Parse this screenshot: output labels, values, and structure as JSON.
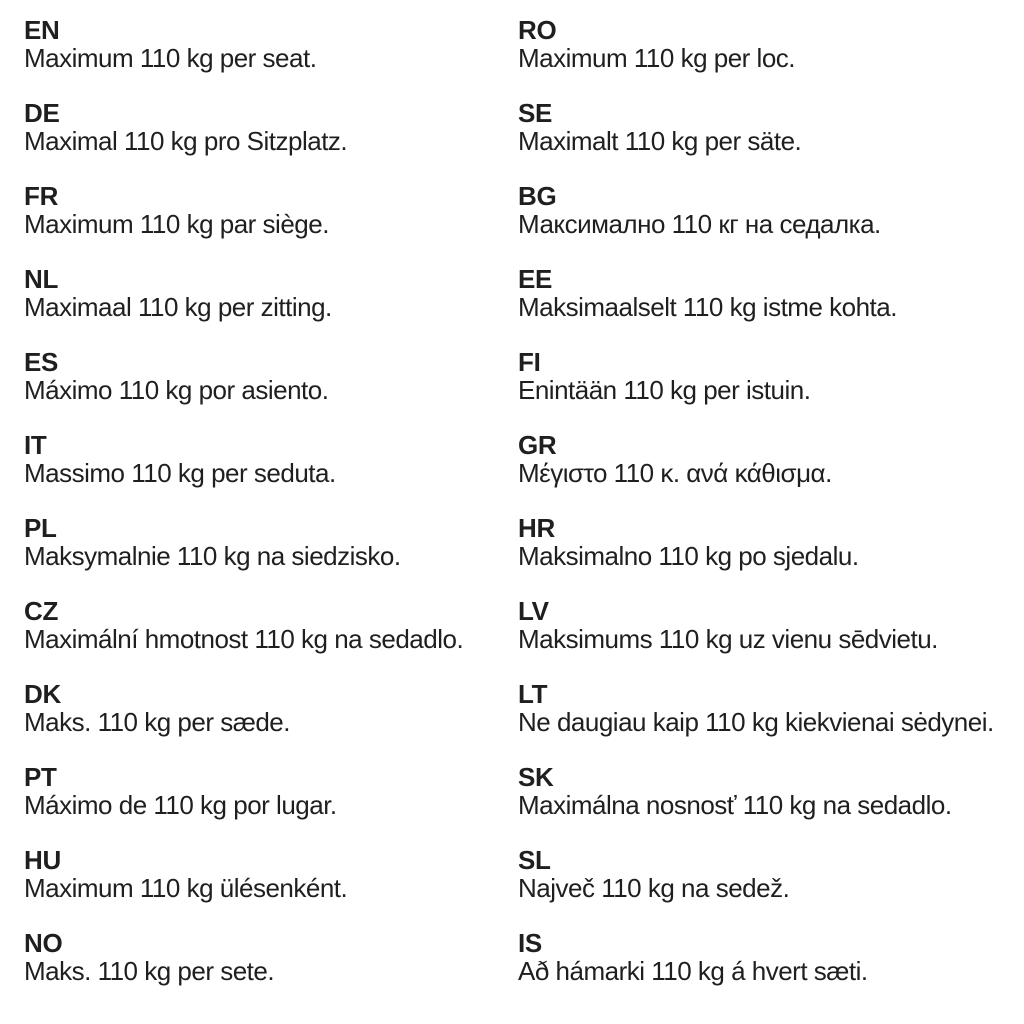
{
  "page": {
    "background_color": "#ffffff",
    "text_color": "#1f1f1f"
  },
  "columns": [
    {
      "name": "left",
      "entries": [
        {
          "code": "EN",
          "text": "Maximum 110 kg per seat."
        },
        {
          "code": "DE",
          "text": "Maximal 110 kg pro Sitzplatz."
        },
        {
          "code": "FR",
          "text": "Maximum 110 kg par siège."
        },
        {
          "code": "NL",
          "text": "Maximaal 110 kg per zitting."
        },
        {
          "code": "ES",
          "text": "Máximo 110 kg por asiento."
        },
        {
          "code": "IT",
          "text": "Massimo 110 kg per seduta."
        },
        {
          "code": "PL",
          "text": "Maksymalnie 110 kg na siedzisko."
        },
        {
          "code": "CZ",
          "text": "Maximální hmotnost 110 kg na sedadlo."
        },
        {
          "code": "DK",
          "text": "Maks. 110 kg per sæde."
        },
        {
          "code": "PT",
          "text": "Máximo de 110 kg por lugar."
        },
        {
          "code": "HU",
          "text": "Maximum 110 kg ülésenként."
        },
        {
          "code": "NO",
          "text": "Maks. 110 kg per sete."
        }
      ]
    },
    {
      "name": "right",
      "entries": [
        {
          "code": "RO",
          "text": "Maximum 110 kg per loc."
        },
        {
          "code": "SE",
          "text": "Maximalt 110 kg per säte."
        },
        {
          "code": "BG",
          "text": "Максимално 110 кг на седалка."
        },
        {
          "code": "EE",
          "text": "Maksimaalselt 110 kg istme kohta."
        },
        {
          "code": "FI",
          "text": "Enintään 110 kg per istuin."
        },
        {
          "code": "GR",
          "text": "Μέγιστο 110 κ. ανά κάθισμα."
        },
        {
          "code": "HR",
          "text": "Maksimalno 110 kg po sjedalu."
        },
        {
          "code": "LV",
          "text": "Maksimums 110 kg uz vienu sēdvietu."
        },
        {
          "code": "LT",
          "text": "Ne daugiau kaip 110 kg kiekvienai sėdynei."
        },
        {
          "code": "SK",
          "text": "Maximálna nosnosť 110 kg na sedadlo."
        },
        {
          "code": "SL",
          "text": "Največ 110 kg na sedež."
        },
        {
          "code": "IS",
          "text": "Að hámarki 110 kg á hvert sæti."
        }
      ]
    }
  ]
}
